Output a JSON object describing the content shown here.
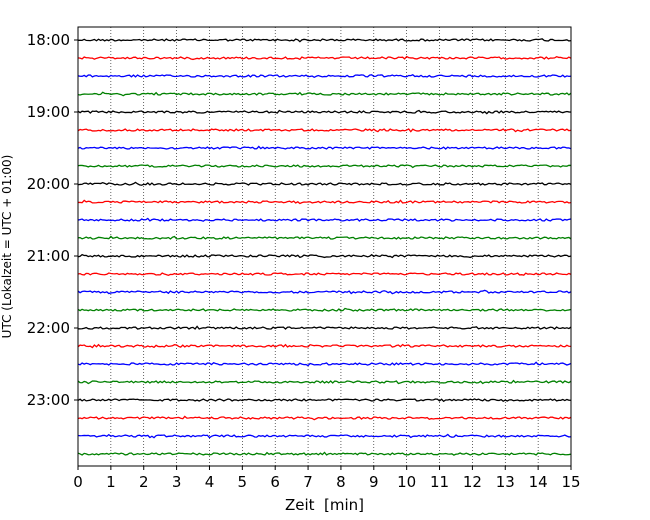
{
  "chart_data": {
    "type": "line",
    "title": "",
    "xlabel": "Zeit  [min]",
    "ylabel": "UTC (Lokalzeit = UTC + 01:00)",
    "xlim": [
      0,
      15
    ],
    "x_ticks": [
      0,
      1,
      2,
      3,
      4,
      5,
      6,
      7,
      8,
      9,
      10,
      11,
      12,
      13,
      14,
      15
    ],
    "y_tick_labels": [
      "18:00",
      "19:00",
      "20:00",
      "21:00",
      "22:00",
      "23:00"
    ],
    "row_start_times": [
      "18:00",
      "18:15",
      "18:30",
      "18:45",
      "19:00",
      "19:15",
      "19:30",
      "19:45",
      "20:00",
      "20:15",
      "20:30",
      "20:45",
      "21:00",
      "21:15",
      "21:30",
      "21:45",
      "22:00",
      "22:15",
      "22:30",
      "22:45",
      "23:00",
      "23:15",
      "23:30",
      "23:45"
    ],
    "row_minutes": 15,
    "colors": [
      "#000000",
      "#ff0000",
      "#0000ff",
      "#008000"
    ],
    "x_grid": true,
    "x_grid_style": "dotted",
    "legend": "none"
  }
}
